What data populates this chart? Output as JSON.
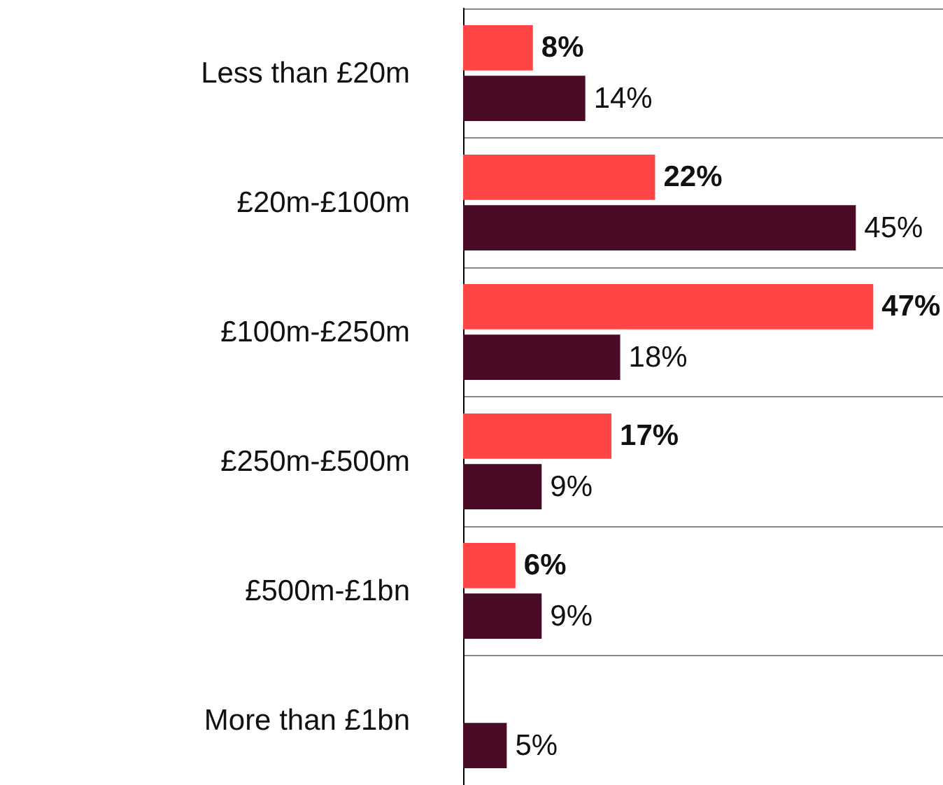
{
  "chart_data": {
    "type": "bar",
    "orientation": "horizontal",
    "categories": [
      "Less than £20m",
      "£20m-£100m",
      "£100m-£250m",
      "£250m-£500m",
      "£500m-£1bn",
      "More than £1bn"
    ],
    "series": [
      {
        "color": "#ff4545",
        "values": [
          8,
          22,
          47,
          17,
          6,
          null
        ],
        "value_labels": [
          "8%",
          "22%",
          "47%",
          "17%",
          "6%",
          null
        ]
      },
      {
        "color": "#4a0b27",
        "values": [
          14,
          45,
          18,
          9,
          9,
          5
        ],
        "value_labels": [
          "14%",
          "45%",
          "18%",
          "9%",
          "9%",
          "5%"
        ]
      }
    ],
    "grid": true
  }
}
